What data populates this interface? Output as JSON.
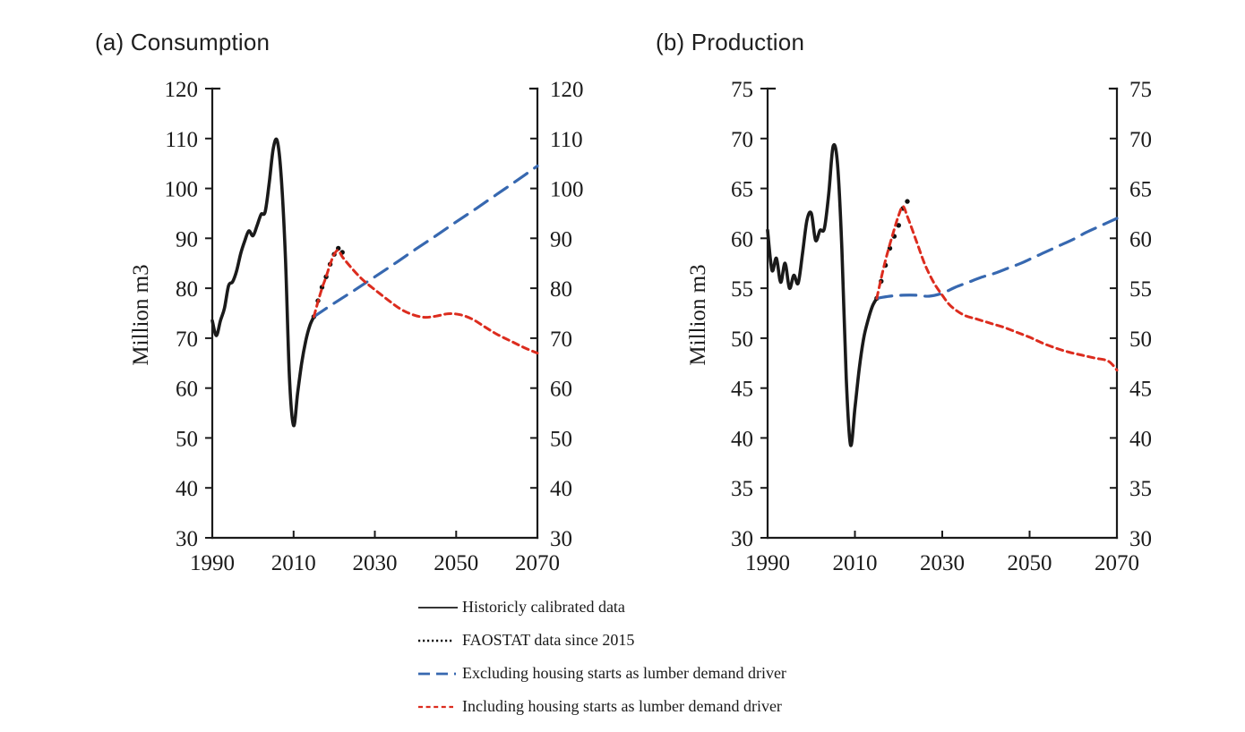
{
  "page": {
    "background": "#ffffff"
  },
  "colors": {
    "historical": "#1a1a1a",
    "faostat": "#111111",
    "excluding": "#3768b0",
    "including": "#dc2c1e",
    "axis": "#1a1a1a"
  },
  "chart_data": [
    {
      "id": "consumption",
      "type": "line",
      "title": "(a) Consumption",
      "ylabel": "Million m3",
      "ylim": [
        30,
        120
      ],
      "ytick_step": 10,
      "xlim": [
        1990,
        2070
      ],
      "xticks": [
        1990,
        2010,
        2030,
        2050,
        2070
      ],
      "grid": false,
      "legend_position": "bottom",
      "series": [
        {
          "name": "Historicly calibrated data",
          "style": "solid-black",
          "x": [
            1990,
            1991,
            1992,
            1993,
            1994,
            1995,
            1996,
            1997,
            1998,
            1999,
            2000,
            2001,
            2002,
            2003,
            2004,
            2005,
            2006,
            2007,
            2008,
            2009,
            2010,
            2011,
            2012,
            2013,
            2014,
            2015
          ],
          "y": [
            73.5,
            70.5,
            73.5,
            76.0,
            80.5,
            81.3,
            83.5,
            87.0,
            89.5,
            91.5,
            90.5,
            92.5,
            94.8,
            95.3,
            101.0,
            108.0,
            109.5,
            102.0,
            86.0,
            62.0,
            52.5,
            59.0,
            65.0,
            69.5,
            72.5,
            74.3
          ]
        },
        {
          "name": "FAOSTAT data since 2015",
          "style": "dotted-black",
          "x": [
            2015,
            2016,
            2017,
            2018,
            2019,
            2020,
            2021,
            2022
          ],
          "y": [
            74.3,
            77.5,
            80.2,
            82.3,
            84.8,
            86.8,
            88.0,
            87.2
          ]
        },
        {
          "name": "Excluding housing starts as lumber demand driver",
          "style": "dashed-blue",
          "x": [
            2015,
            2020,
            2025,
            2030,
            2035,
            2040,
            2045,
            2050,
            2055,
            2060,
            2065,
            2070
          ],
          "y": [
            74.3,
            77.0,
            79.6,
            82.3,
            85.0,
            87.8,
            90.5,
            93.3,
            96.0,
            98.8,
            101.6,
            104.5
          ]
        },
        {
          "name": "Including housing starts as lumber demand driver",
          "style": "dashed-red",
          "x": [
            2015,
            2016,
            2017,
            2018,
            2019,
            2020,
            2021,
            2022,
            2024,
            2026,
            2028,
            2030,
            2033,
            2036,
            2039,
            2042,
            2045,
            2048,
            2051,
            2054,
            2057,
            2060,
            2064,
            2067,
            2070
          ],
          "y": [
            74.3,
            77.3,
            80.0,
            82.3,
            84.8,
            86.8,
            87.6,
            86.3,
            84.3,
            82.5,
            81.0,
            79.7,
            77.8,
            76.0,
            74.8,
            74.2,
            74.4,
            74.9,
            74.7,
            73.8,
            72.3,
            70.8,
            69.2,
            68.0,
            67.0
          ]
        }
      ]
    },
    {
      "id": "production",
      "type": "line",
      "title": "(b) Production",
      "ylabel": "Million m3",
      "ylim": [
        30,
        75
      ],
      "ytick_step": 5,
      "xlim": [
        1990,
        2070
      ],
      "xticks": [
        1990,
        2010,
        2030,
        2050,
        2070
      ],
      "grid": false,
      "legend_position": "bottom",
      "series": [
        {
          "name": "Historicly calibrated data",
          "style": "solid-black",
          "x": [
            1990,
            1991,
            1992,
            1993,
            1994,
            1995,
            1996,
            1997,
            1998,
            1999,
            2000,
            2001,
            2002,
            2003,
            2004,
            2005,
            2006,
            2007,
            2008,
            2009,
            2010,
            2011,
            2012,
            2013,
            2014,
            2015
          ],
          "y": [
            60.8,
            56.8,
            58.0,
            55.6,
            57.5,
            55.0,
            56.3,
            55.5,
            58.5,
            61.8,
            62.5,
            59.8,
            60.8,
            61.0,
            64.5,
            69.2,
            67.5,
            59.0,
            46.0,
            39.3,
            43.0,
            47.0,
            50.0,
            51.8,
            53.2,
            54.0
          ]
        },
        {
          "name": "FAOSTAT data since 2015",
          "style": "dotted-black",
          "x": [
            2015,
            2016,
            2017,
            2018,
            2019,
            2020,
            2021,
            2022
          ],
          "y": [
            54.0,
            55.7,
            57.3,
            59.0,
            60.2,
            61.3,
            63.0,
            63.7
          ]
        },
        {
          "name": "Excluding housing starts as lumber demand driver",
          "style": "dashed-blue",
          "x": [
            2015,
            2018,
            2021,
            2024,
            2027,
            2030,
            2033,
            2036,
            2039,
            2042,
            2045,
            2048,
            2051,
            2054,
            2057,
            2060,
            2063,
            2066,
            2070
          ],
          "y": [
            54.0,
            54.2,
            54.3,
            54.3,
            54.2,
            54.5,
            55.1,
            55.6,
            56.1,
            56.5,
            57.0,
            57.5,
            58.1,
            58.7,
            59.3,
            59.9,
            60.6,
            61.2,
            62.0
          ]
        },
        {
          "name": "Including housing starts as lumber demand driver",
          "style": "dashed-red",
          "x": [
            2015,
            2016,
            2017,
            2018,
            2019,
            2020,
            2021,
            2022,
            2024,
            2026,
            2028,
            2030,
            2032,
            2035,
            2038,
            2041,
            2044,
            2047,
            2050,
            2053,
            2056,
            2059,
            2062,
            2065,
            2068,
            2070
          ],
          "y": [
            54.0,
            56.0,
            57.8,
            59.4,
            60.9,
            62.3,
            63.2,
            62.2,
            59.8,
            57.4,
            55.6,
            54.3,
            53.2,
            52.3,
            51.9,
            51.5,
            51.1,
            50.6,
            50.1,
            49.5,
            49.0,
            48.6,
            48.3,
            48.0,
            47.7,
            46.8
          ]
        }
      ]
    }
  ],
  "legend": {
    "items": [
      {
        "label": "Historicly calibrated data",
        "swatch": "solid-black"
      },
      {
        "label": "FAOSTAT data since 2015",
        "swatch": "dotted-black"
      },
      {
        "label": "Excluding housing starts as lumber demand driver",
        "swatch": "dashed-blue"
      },
      {
        "label": "Including housing starts as lumber demand driver",
        "swatch": "dashed-red"
      }
    ]
  }
}
